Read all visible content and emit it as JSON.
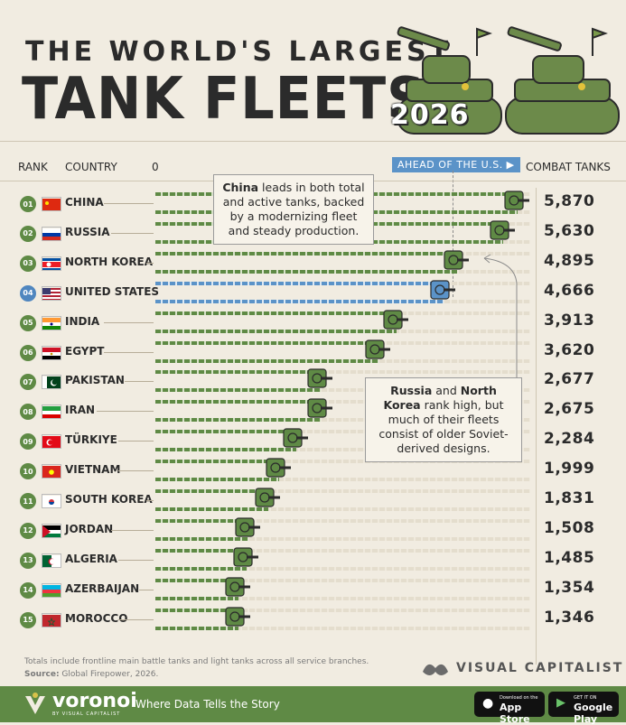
{
  "header": {
    "title_top": "THE WORLD'S LARGEST",
    "title_main": "TANK FLEETS",
    "year": "2026"
  },
  "columns": {
    "rank": "RANK",
    "country": "COUNTRY",
    "zero": "0",
    "ahead": "AHEAD OF THE U.S. ▶",
    "value": "COMBAT TANKS"
  },
  "annotations": {
    "china_bold": "China",
    "china_rest": " leads in both total and active tanks, backed by a modernizing fleet and steady production.",
    "russia_bold": "Russia",
    "russia_and": " and ",
    "nk_bold": "North Korea",
    "russia_rest": " rank high, but much of their fleets consist of older Soviet-derived designs."
  },
  "chart_data": {
    "type": "bar",
    "title": "THE WORLD'S LARGEST TANK FLEETS 2026",
    "xlabel": "",
    "ylabel": "COMBAT TANKS",
    "xlim": [
      0,
      5870
    ],
    "highlight": "UNITED STATES",
    "colors": {
      "default": "#5f8a45",
      "highlight": "#5b93c8"
    },
    "rows": [
      {
        "rank": "01",
        "country": "CHINA",
        "value": 5870,
        "value_label": "5,870",
        "flag": "china"
      },
      {
        "rank": "02",
        "country": "RUSSIA",
        "value": 5630,
        "value_label": "5,630",
        "flag": "russia"
      },
      {
        "rank": "03",
        "country": "NORTH KOREA",
        "value": 4895,
        "value_label": "4,895",
        "flag": "north-korea"
      },
      {
        "rank": "04",
        "country": "UNITED STATES",
        "value": 4666,
        "value_label": "4,666",
        "flag": "usa"
      },
      {
        "rank": "05",
        "country": "INDIA",
        "value": 3913,
        "value_label": "3,913",
        "flag": "india"
      },
      {
        "rank": "06",
        "country": "EGYPT",
        "value": 3620,
        "value_label": "3,620",
        "flag": "egypt"
      },
      {
        "rank": "07",
        "country": "PAKISTAN",
        "value": 2677,
        "value_label": "2,677",
        "flag": "pakistan"
      },
      {
        "rank": "08",
        "country": "IRAN",
        "value": 2675,
        "value_label": "2,675",
        "flag": "iran"
      },
      {
        "rank": "09",
        "country": "TÜRKIYE",
        "value": 2284,
        "value_label": "2,284",
        "flag": "turkiye"
      },
      {
        "rank": "10",
        "country": "VIETNAM",
        "value": 1999,
        "value_label": "1,999",
        "flag": "vietnam"
      },
      {
        "rank": "11",
        "country": "SOUTH KOREA",
        "value": 1831,
        "value_label": "1,831",
        "flag": "south-korea"
      },
      {
        "rank": "12",
        "country": "JORDAN",
        "value": 1508,
        "value_label": "1,508",
        "flag": "jordan"
      },
      {
        "rank": "13",
        "country": "ALGERIA",
        "value": 1485,
        "value_label": "1,485",
        "flag": "algeria"
      },
      {
        "rank": "14",
        "country": "AZERBAIJAN",
        "value": 1354,
        "value_label": "1,354",
        "flag": "azerbaijan"
      },
      {
        "rank": "15",
        "country": "MOROCCO",
        "value": 1346,
        "value_label": "1,346",
        "flag": "morocco"
      }
    ]
  },
  "footer": {
    "note": "Totals include frontline main battle tanks and light tanks across all service branches.",
    "source_label": "Source:",
    "source_text": " Global Firepower, 2026.",
    "brand": "VISUAL CAPITALIST",
    "voronoi": "voronoi",
    "voronoi_sub": "BY VISUAL CAPITALIST",
    "tagline": "Where Data Tells the Story",
    "appstore_small": "Download on the",
    "appstore_big": "App Store",
    "googleplay_small": "GET IT ON",
    "googleplay_big": "Google Play"
  }
}
